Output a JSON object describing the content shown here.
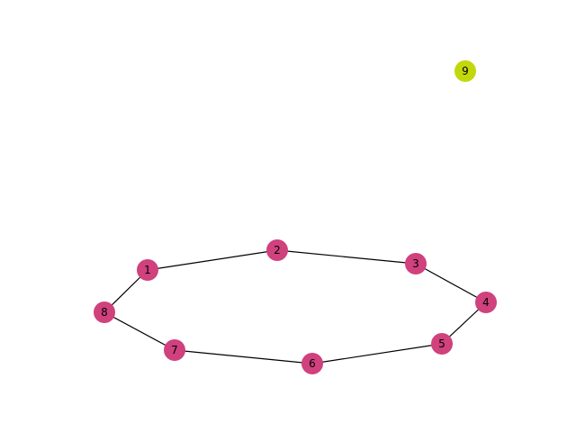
{
  "graph": {
    "nodes": [
      {
        "id": "1",
        "label": "1",
        "color": "#d0417e"
      },
      {
        "id": "2",
        "label": "2",
        "color": "#d0417e"
      },
      {
        "id": "3",
        "label": "3",
        "color": "#d0417e"
      },
      {
        "id": "4",
        "label": "4",
        "color": "#d0417e"
      },
      {
        "id": "5",
        "label": "5",
        "color": "#d0417e"
      },
      {
        "id": "6",
        "label": "6",
        "color": "#d0417e"
      },
      {
        "id": "7",
        "label": "7",
        "color": "#d0417e"
      },
      {
        "id": "8",
        "label": "8",
        "color": "#d0417e"
      },
      {
        "id": "9",
        "label": "9",
        "color": "#c2d80d"
      }
    ],
    "edges": [
      [
        "1",
        "2"
      ],
      [
        "2",
        "3"
      ],
      [
        "3",
        "4"
      ],
      [
        "4",
        "5"
      ],
      [
        "5",
        "6"
      ],
      [
        "6",
        "7"
      ],
      [
        "7",
        "8"
      ],
      [
        "8",
        "1"
      ]
    ]
  }
}
